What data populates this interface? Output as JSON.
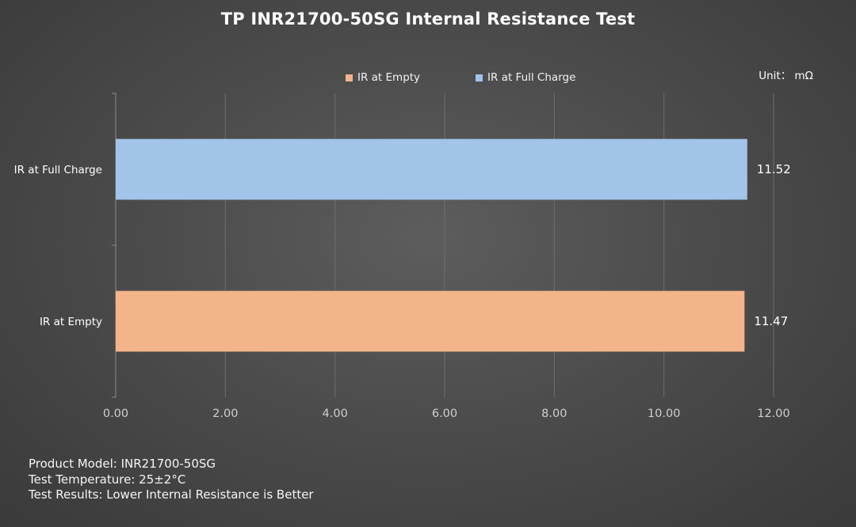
{
  "title": "TP INR21700-50SG Internal Resistance Test",
  "unit_label": "Unit：  mΩ",
  "legend": [
    {
      "label": "IR at Empty",
      "color": "#f4b48a"
    },
    {
      "label": "IR at Full Charge",
      "color": "#a2c4e8"
    }
  ],
  "chart_data": {
    "type": "bar",
    "orientation": "horizontal",
    "categories": [
      "IR at Full Charge",
      "IR at Empty"
    ],
    "values": [
      11.52,
      11.47
    ],
    "value_labels": [
      "11.52",
      "11.47"
    ],
    "colors": [
      "#a2c4e8",
      "#f4b48a"
    ],
    "xlim": [
      0,
      12
    ],
    "xticks": [
      "0.00",
      "2.00",
      "4.00",
      "6.00",
      "8.00",
      "10.00",
      "12.00"
    ],
    "grid": true,
    "legend_position": "top"
  },
  "footer": {
    "line1": "Product Model: INR21700-50SG",
    "line2": "Test Temperature: 25±2°C",
    "line3": "Test Results: Lower Internal Resistance is Better"
  }
}
